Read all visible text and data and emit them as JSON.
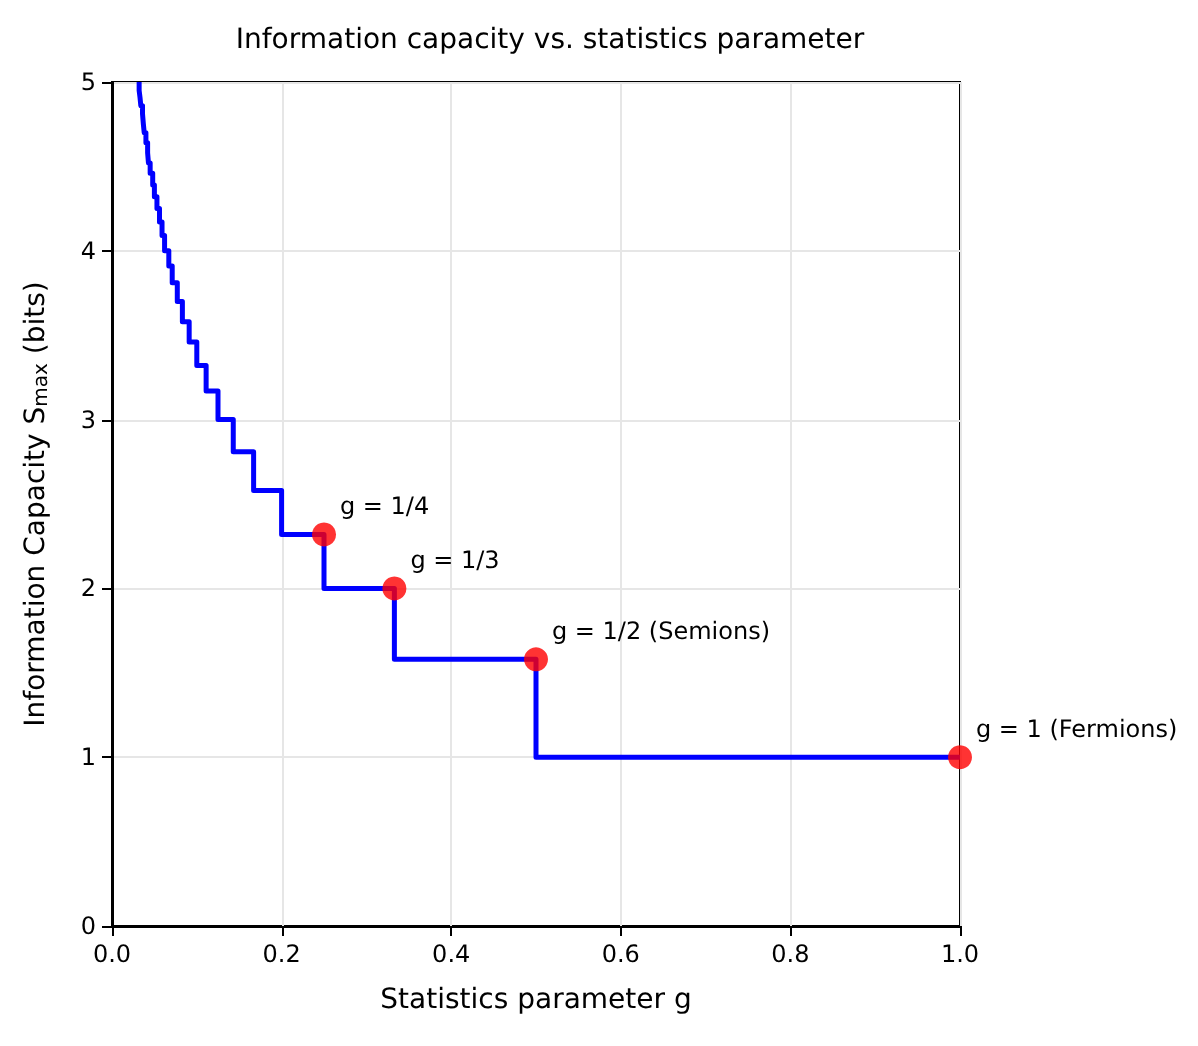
{
  "chart_data": {
    "type": "step",
    "title": "Information capacity vs. statistics parameter",
    "xlabel": "Statistics parameter g",
    "ylabel": "Information Capacity S$_{max}$ (bits)",
    "xlim": [
      0,
      1
    ],
    "xticks": [
      {
        "value": 0,
        "label": "0.0"
      },
      {
        "value": 0.2,
        "label": "0.2"
      },
      {
        "value": 0.4,
        "label": "0.4"
      },
      {
        "value": 0.6,
        "label": "0.6"
      },
      {
        "value": 0.8,
        "label": "0.8"
      },
      {
        "value": 1,
        "label": "1.0"
      }
    ],
    "ylim": [
      0,
      5
    ],
    "yticks": [
      0,
      1,
      2,
      3,
      4,
      5
    ],
    "grid": true,
    "series": [
      {
        "type": "step",
        "color": "#0000ff",
        "marker": "none",
        "x": [
          0.032,
          0.033,
          0.034,
          0.036,
          0.037,
          0.038,
          0.04,
          0.042,
          0.043,
          0.045,
          0.048,
          0.05,
          0.053,
          0.056,
          0.059,
          0.062,
          0.067,
          0.071,
          0.077,
          0.083,
          0.091,
          0.1,
          0.111,
          0.125,
          0.143,
          0.167,
          0.2,
          0.25,
          0.333,
          0.5,
          1
        ],
        "values": [
          5,
          4.95,
          4.91,
          4.86,
          4.81,
          4.75,
          4.7,
          4.64,
          4.58,
          4.52,
          4.46,
          4.39,
          4.32,
          4.25,
          4.17,
          4.09,
          4,
          3.91,
          3.81,
          3.7,
          3.58,
          3.46,
          3.32,
          3.17,
          3,
          2.81,
          2.58,
          2.32,
          2,
          1.58,
          1
        ]
      },
      {
        "type": "scatter",
        "color": "#ff0000",
        "marker": "circle",
        "x": [
          0.25,
          0.333,
          0.5,
          1
        ],
        "values": [
          2.32,
          2,
          1.58,
          1
        ]
      }
    ],
    "annotations": [
      {
        "text": "g = 1/4",
        "x": 0.25,
        "y": 2.32
      },
      {
        "text": "g = 1/3",
        "x": 0.333,
        "y": 2
      },
      {
        "text": "g = 1/2 (Semions)",
        "x": 0.5,
        "y": 1.58
      },
      {
        "text": "g = 1 (Fermions)",
        "x": 1,
        "y": 1
      }
    ]
  }
}
